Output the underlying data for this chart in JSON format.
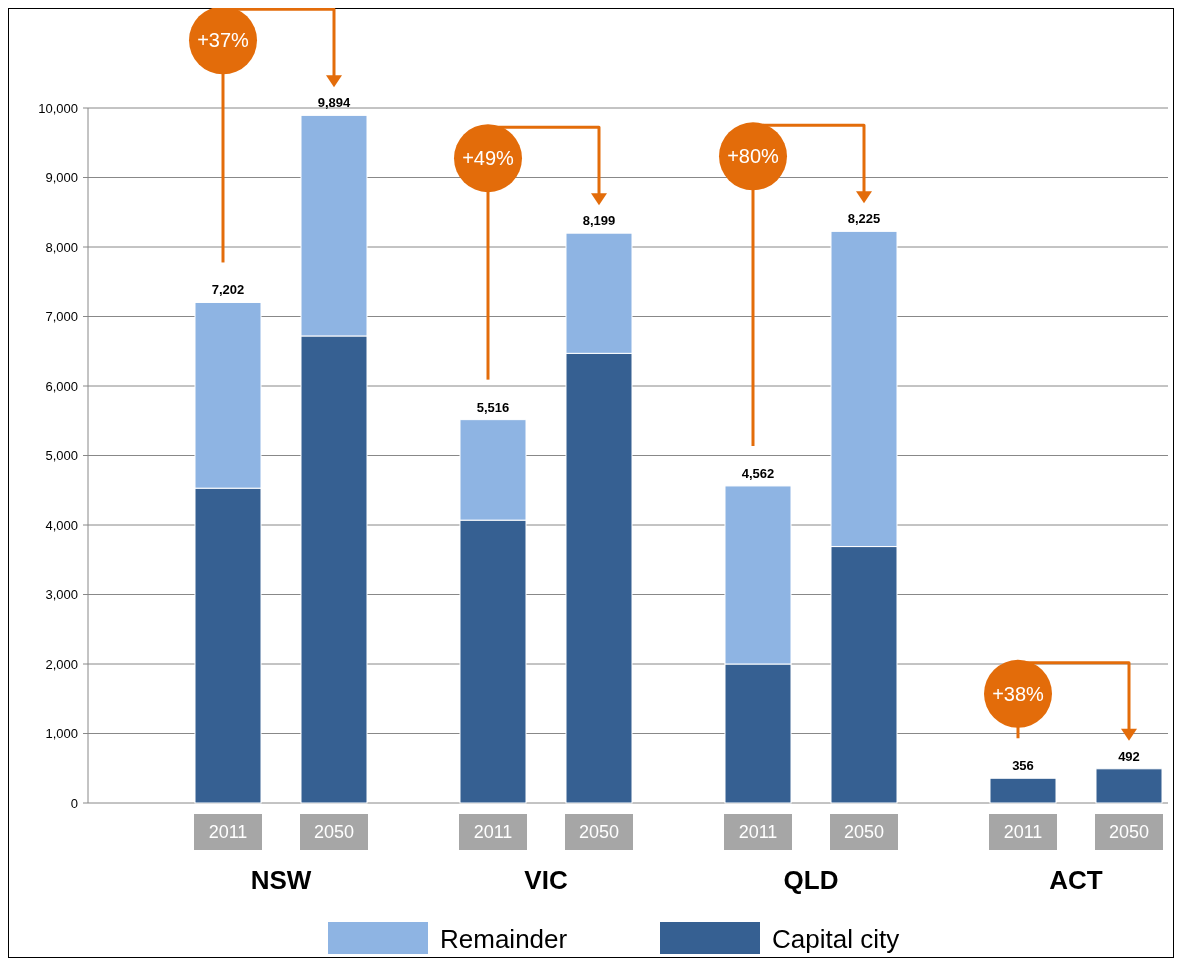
{
  "chart_data": {
    "type": "bar",
    "stacked": true,
    "categories": [
      "2011",
      "2050",
      "2011",
      "2050",
      "2011",
      "2050",
      "2011",
      "2050"
    ],
    "series": [
      {
        "name": "Capital city",
        "color": "#366092",
        "values": [
          4530,
          6720,
          4070,
          6470,
          2000,
          3690,
          356,
          492
        ]
      },
      {
        "name": "Remainder",
        "color": "#8eb4e3",
        "values": [
          2672,
          3174,
          1446,
          1729,
          2562,
          4535,
          0,
          0
        ]
      }
    ],
    "totals": [
      "7,202",
      "9,894",
      "5,516",
      "8,199",
      "4,562",
      "8,225",
      "356",
      "492"
    ],
    "ylim": [
      0,
      10000
    ],
    "yticks": [
      0,
      {
        "value": 1000,
        "label": "1,000"
      },
      {
        "value": 2000,
        "label": "2,000"
      },
      {
        "value": 3000,
        "label": "3,000"
      },
      {
        "value": 4000,
        "label": "4,000"
      },
      {
        "value": 5000,
        "label": "5,000"
      },
      {
        "value": 6000,
        "label": "6,000"
      },
      {
        "value": 7000,
        "label": "7,000"
      },
      {
        "value": 8000,
        "label": "8,000"
      },
      {
        "value": 9000,
        "label": "9,000"
      },
      {
        "value": 10000,
        "label": "10,000"
      }
    ],
    "grid": "y",
    "legend": "bottom",
    "annotations": [
      "NSW",
      "VIC",
      "QLD",
      "ACT",
      "+37%",
      "+49%",
      "+80%",
      "+38%"
    ]
  }
}
